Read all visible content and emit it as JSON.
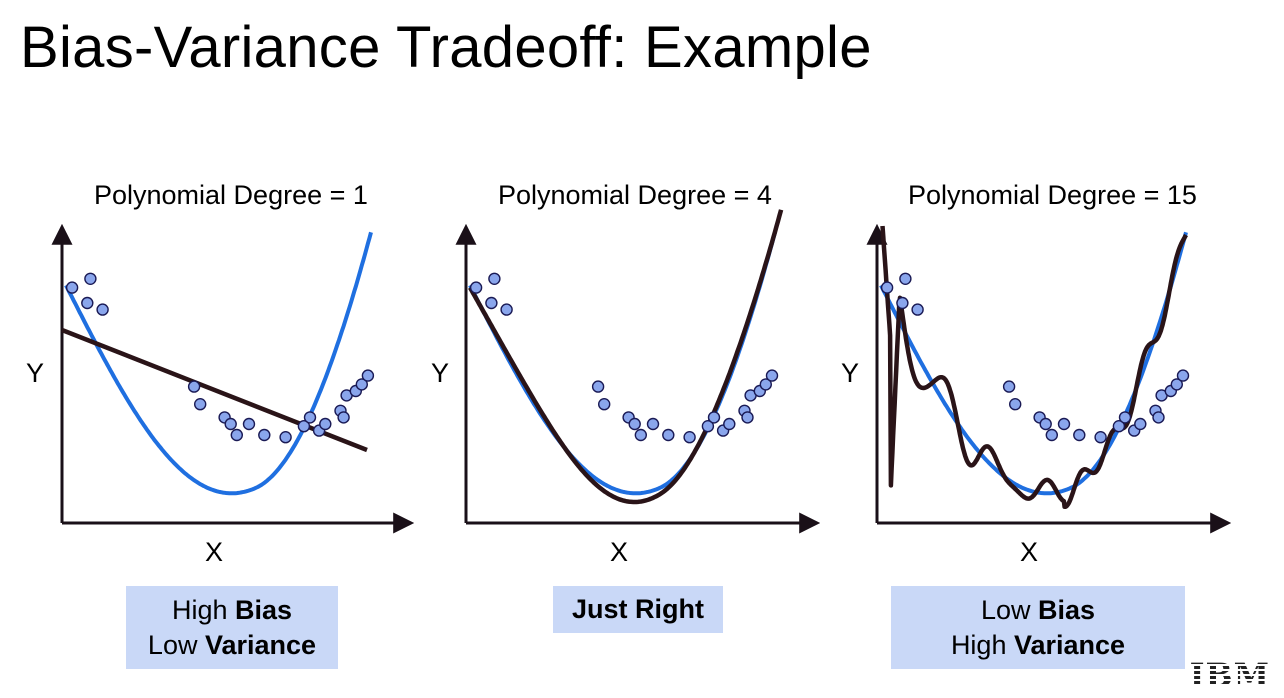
{
  "title": "Bias-Variance Tradeoff: Example",
  "panels": [
    {
      "title": "Polynomial Degree = 1",
      "ylabel": "Y",
      "xlabel": "X",
      "caption": {
        "line1_normal": "High ",
        "line1_bold": "Bias",
        "line2_normal": "Low ",
        "line2_bold": "Variance"
      }
    },
    {
      "title": "Polynomial Degree = 4",
      "ylabel": "Y",
      "xlabel": "X",
      "caption": {
        "line1_normal": "",
        "line1_bold": "Just Right",
        "line2_normal": "",
        "line2_bold": ""
      }
    },
    {
      "title": "Polynomial Degree = 15",
      "ylabel": "Y",
      "xlabel": "X",
      "caption": {
        "line1_normal": "Low ",
        "line1_bold": "Bias",
        "line2_normal": "High ",
        "line2_bold": "Variance"
      }
    }
  ],
  "logo": "IBM",
  "colors": {
    "true_curve": "#1f6fe0",
    "fit_curve": "#2a1418",
    "points_fill": "#8aa6ec",
    "points_stroke": "#1a1a55",
    "caption_bg": "#c9d8f7"
  },
  "chart_data": [
    {
      "type": "scatter",
      "title": "Polynomial Degree = 1",
      "xlabel": "X",
      "ylabel": "Y",
      "points": [
        [
          0.02,
          0.92
        ],
        [
          0.08,
          0.96
        ],
        [
          0.07,
          0.85
        ],
        [
          0.12,
          0.82
        ],
        [
          0.42,
          0.47
        ],
        [
          0.44,
          0.39
        ],
        [
          0.52,
          0.33
        ],
        [
          0.54,
          0.3
        ],
        [
          0.56,
          0.25
        ],
        [
          0.6,
          0.3
        ],
        [
          0.65,
          0.25
        ],
        [
          0.72,
          0.24
        ],
        [
          0.78,
          0.29
        ],
        [
          0.8,
          0.33
        ],
        [
          0.83,
          0.27
        ],
        [
          0.85,
          0.3
        ],
        [
          0.9,
          0.36
        ],
        [
          0.92,
          0.43
        ],
        [
          0.95,
          0.45
        ],
        [
          0.97,
          0.48
        ],
        [
          0.99,
          0.52
        ],
        [
          0.91,
          0.33
        ]
      ],
      "fit": "linear"
    },
    {
      "type": "scatter",
      "title": "Polynomial Degree = 4",
      "xlabel": "X",
      "ylabel": "Y",
      "fit": "smooth"
    },
    {
      "type": "scatter",
      "title": "Polynomial Degree = 15",
      "xlabel": "X",
      "ylabel": "Y",
      "fit": "overfit-wiggly"
    }
  ]
}
